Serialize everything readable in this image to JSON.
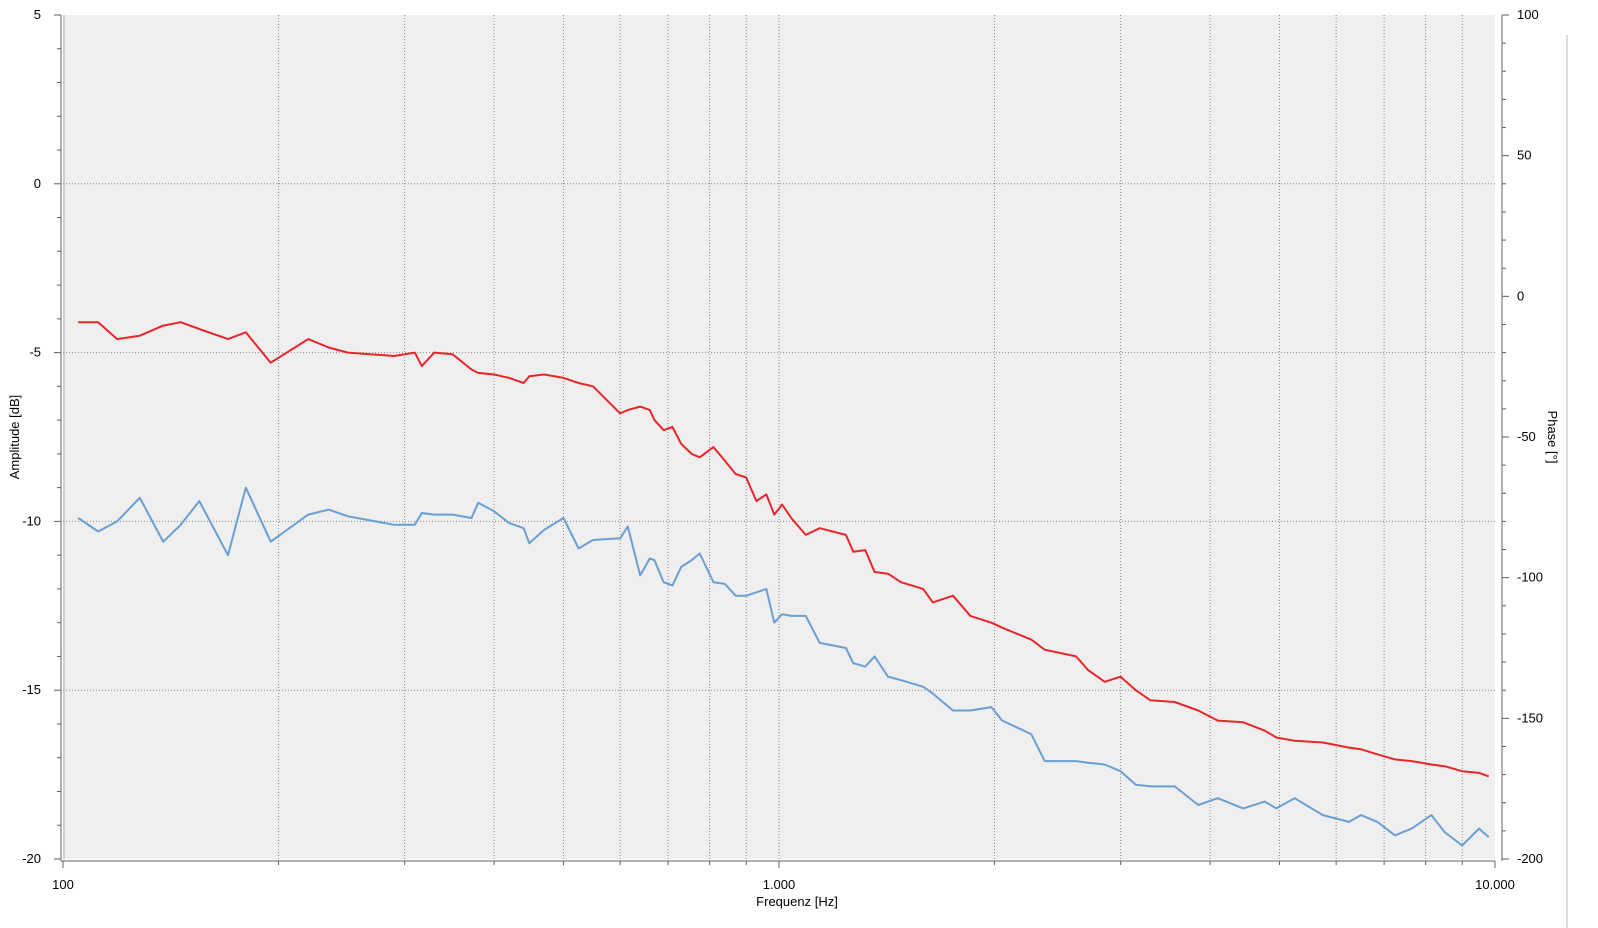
{
  "chart_data": {
    "type": "line",
    "xlabel": "Frequenz [Hz]",
    "ylabel": "Amplitude [dB]",
    "y2label": "Phase [°]",
    "x_scale": "log",
    "xlim": [
      100,
      10000
    ],
    "ylim": [
      -20,
      5
    ],
    "y2lim": [
      -200,
      100
    ],
    "grid": true,
    "x_ticks": [
      {
        "value": 100,
        "label": "100"
      },
      {
        "value": 1000,
        "label": "1.000"
      },
      {
        "value": 10000,
        "label": "10.000"
      }
    ],
    "y_ticks": [
      {
        "value": 5,
        "label": "5"
      },
      {
        "value": 0,
        "label": "0"
      },
      {
        "value": -5,
        "label": "-5"
      },
      {
        "value": -10,
        "label": "-10"
      },
      {
        "value": -15,
        "label": "-15"
      },
      {
        "value": -20,
        "label": "-20"
      }
    ],
    "y2_ticks": [
      {
        "value": 100,
        "label": "100"
      },
      {
        "value": 50,
        "label": "50"
      },
      {
        "value": 0,
        "label": "0"
      },
      {
        "value": -50,
        "label": "-50"
      },
      {
        "value": -100,
        "label": "-100"
      },
      {
        "value": -150,
        "label": "-150"
      },
      {
        "value": -200,
        "label": "-200"
      }
    ],
    "series": [
      {
        "color": "#e8262a",
        "x": [
          105,
          112,
          119,
          128,
          138,
          146,
          155,
          170,
          180,
          195,
          220,
          235,
          250,
          290,
          310,
          317,
          330,
          350,
          372,
          380,
          400,
          420,
          440,
          448,
          470,
          500,
          525,
          550,
          600,
          615,
          640,
          660,
          670,
          690,
          710,
          730,
          755,
          775,
          810,
          840,
          870,
          900,
          930,
          960,
          985,
          1010,
          1040,
          1090,
          1140,
          1240,
          1270,
          1320,
          1360,
          1420,
          1480,
          1590,
          1640,
          1750,
          1850,
          1980,
          2050,
          2250,
          2350,
          2600,
          2700,
          2850,
          3000,
          3150,
          3300,
          3570,
          3850,
          4100,
          4450,
          4770,
          4950,
          5250,
          5750,
          6250,
          6500,
          6850,
          7250,
          7650,
          8150,
          8500,
          9000,
          9500,
          9800
        ],
        "values": [
          -4.1,
          -4.1,
          -4.6,
          -4.5,
          -4.2,
          -4.1,
          -4.3,
          -4.6,
          -4.4,
          -5.3,
          -4.6,
          -4.85,
          -5.0,
          -5.1,
          -5.0,
          -5.4,
          -5.0,
          -5.05,
          -5.5,
          -5.6,
          -5.65,
          -5.75,
          -5.9,
          -5.7,
          -5.65,
          -5.75,
          -5.9,
          -6.0,
          -6.8,
          -6.7,
          -6.6,
          -6.7,
          -7.0,
          -7.3,
          -7.2,
          -7.7,
          -8.0,
          -8.1,
          -7.8,
          -8.2,
          -8.6,
          -8.7,
          -9.4,
          -9.2,
          -9.8,
          -9.5,
          -9.9,
          -10.4,
          -10.2,
          -10.4,
          -10.9,
          -10.85,
          -11.5,
          -11.55,
          -11.8,
          -12.0,
          -12.4,
          -12.2,
          -12.8,
          -13.0,
          -13.15,
          -13.5,
          -13.8,
          -14.0,
          -14.4,
          -14.75,
          -14.6,
          -15.0,
          -15.3,
          -15.35,
          -15.6,
          -15.9,
          -15.95,
          -16.2,
          -16.4,
          -16.5,
          -16.55,
          -16.7,
          -16.75,
          -16.9,
          -17.05,
          -17.1,
          -17.2,
          -17.25,
          -17.4,
          -17.45,
          -17.55
        ],
        "label_positions_note": ""
      },
      {
        "color": "#6a9fd4",
        "x": [
          105,
          112,
          119,
          128,
          138,
          146,
          155,
          170,
          180,
          195,
          220,
          235,
          250,
          290,
          310,
          317,
          330,
          350,
          372,
          380,
          400,
          420,
          440,
          448,
          470,
          500,
          525,
          550,
          600,
          615,
          640,
          660,
          670,
          690,
          710,
          730,
          755,
          775,
          810,
          840,
          870,
          900,
          930,
          960,
          985,
          1010,
          1040,
          1090,
          1140,
          1240,
          1270,
          1320,
          1360,
          1420,
          1480,
          1590,
          1640,
          1750,
          1850,
          1980,
          2050,
          2250,
          2350,
          2600,
          2700,
          2850,
          3000,
          3150,
          3300,
          3570,
          3850,
          4100,
          4450,
          4770,
          4950,
          5250,
          5750,
          6250,
          6500,
          6850,
          7250,
          7650,
          8150,
          8500,
          9000,
          9500,
          9800
        ],
        "values": [
          -9.9,
          -10.3,
          -10.0,
          -9.3,
          -10.6,
          -10.1,
          -9.4,
          -11.0,
          -9.0,
          -10.6,
          -9.8,
          -9.65,
          -9.85,
          -10.1,
          -10.1,
          -9.75,
          -9.8,
          -9.8,
          -9.9,
          -9.45,
          -9.7,
          -10.05,
          -10.2,
          -10.65,
          -10.25,
          -9.9,
          -10.8,
          -10.55,
          -10.5,
          -10.15,
          -11.6,
          -11.1,
          -11.15,
          -11.8,
          -11.9,
          -11.35,
          -11.15,
          -10.95,
          -11.8,
          -11.85,
          -12.2,
          -12.2,
          -12.1,
          -12.0,
          -13.0,
          -12.75,
          -12.8,
          -12.8,
          -13.6,
          -13.75,
          -14.2,
          -14.3,
          -14.0,
          -14.6,
          -14.7,
          -14.9,
          -15.1,
          -15.6,
          -15.6,
          -15.5,
          -15.9,
          -16.3,
          -17.1,
          -17.1,
          -17.15,
          -17.2,
          -17.4,
          -17.8,
          -17.85,
          -17.85,
          -18.4,
          -18.2,
          -18.5,
          -18.3,
          -18.5,
          -18.2,
          -18.7,
          -18.9,
          -18.7,
          -18.9,
          -19.3,
          -19.1,
          -18.7,
          -19.2,
          -19.6,
          -19.1,
          -19.35
        ]
      }
    ]
  }
}
